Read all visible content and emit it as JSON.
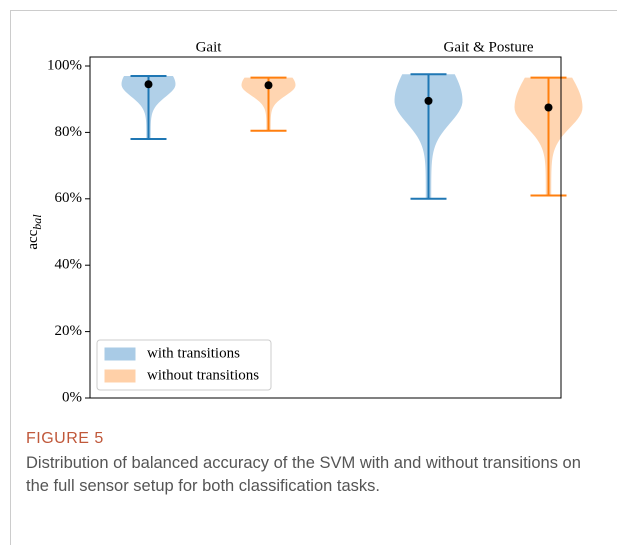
{
  "chart_data": {
    "type": "violin",
    "group_labels": [
      "Gait",
      "Gait & Posture"
    ],
    "y_label": "acc",
    "y_label_subscript": "bal",
    "ylim": [
      0,
      100
    ],
    "yticks": [
      {
        "value": 0,
        "label": "0%"
      },
      {
        "value": 20,
        "label": "20%"
      },
      {
        "value": 40,
        "label": "40%"
      },
      {
        "value": 60,
        "label": "60%"
      },
      {
        "value": 80,
        "label": "80%"
      },
      {
        "value": 100,
        "label": "100%"
      }
    ],
    "legend": "lower left",
    "series": [
      {
        "name": "with transitions",
        "color": "#1f77b4",
        "fill": "#a9cbe6",
        "min": [
          78,
          60
        ],
        "max": [
          97,
          97.5
        ],
        "mean": [
          94.5,
          89.5
        ]
      },
      {
        "name": "without transitions",
        "color": "#ff7f0e",
        "fill": "#ffd0a8",
        "min": [
          80.5,
          61
        ],
        "max": [
          96.5,
          96.5
        ],
        "mean": [
          94.2,
          87.5
        ]
      }
    ]
  },
  "figure": {
    "label": "FIGURE 5",
    "caption": "Distribution of balanced accuracy of the SVM with and without transitions on the full sensor setup for both classification tasks."
  }
}
